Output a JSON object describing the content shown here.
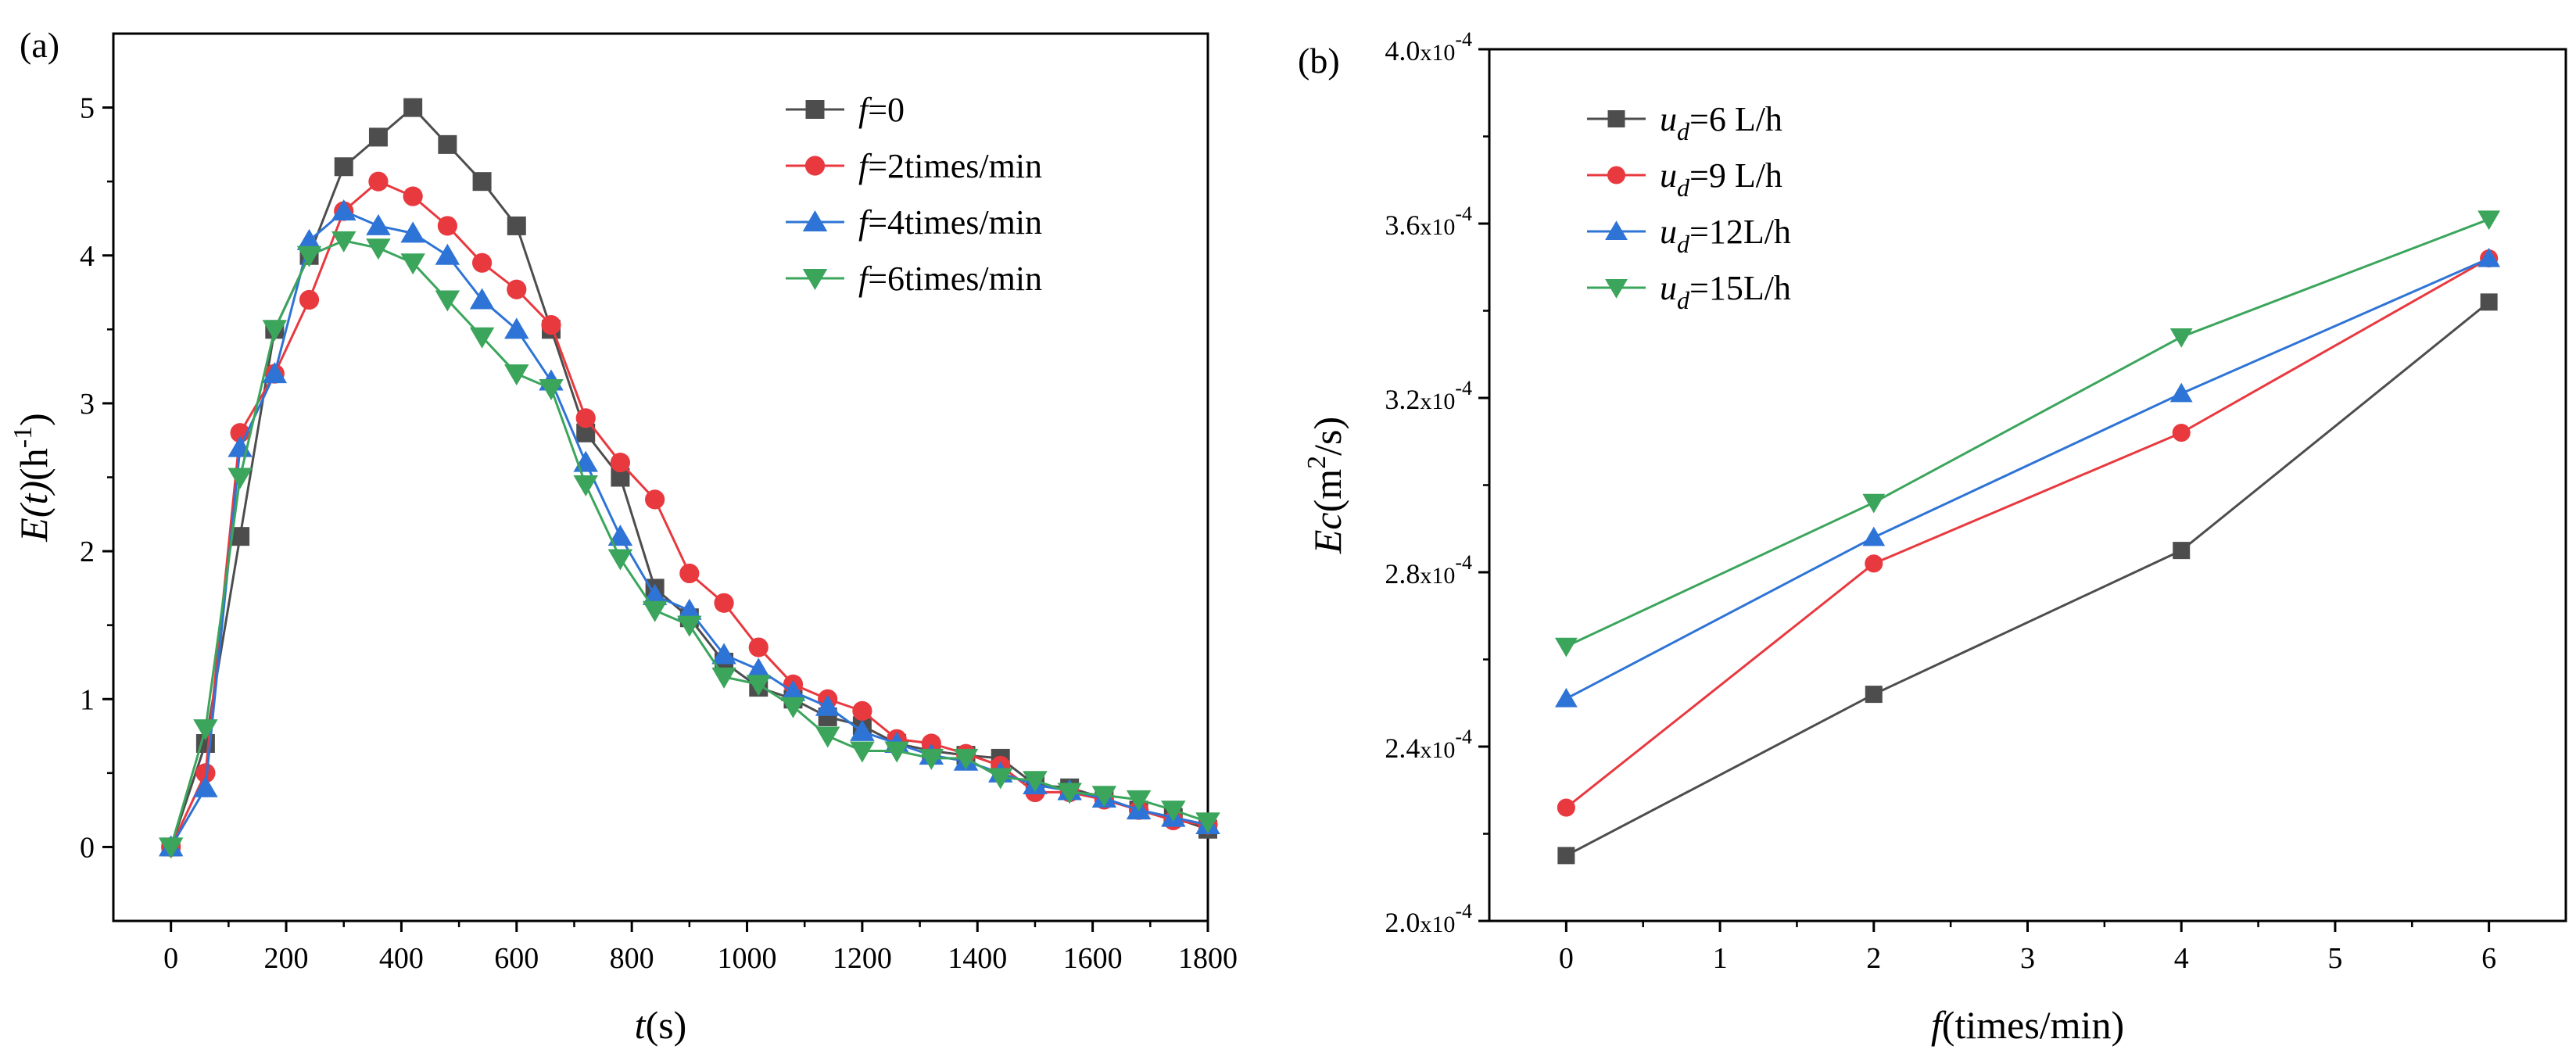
{
  "chart_data": [
    {
      "panel": "(a)",
      "type": "line",
      "title": "",
      "xlabel_italic": "t",
      "xlabel_rest": "(s)",
      "ylabel_italic": "E(t)",
      "ylabel_rest": "(h",
      "ylabel_sup": "-1",
      "ylabel_close": ")",
      "xlim": [
        -100,
        1800
      ],
      "ylim": [
        -0.5,
        5.5
      ],
      "xticks": [
        0,
        200,
        400,
        600,
        800,
        1000,
        1200,
        1400,
        1600,
        1800
      ],
      "yticks": [
        0,
        1,
        2,
        3,
        4,
        5
      ],
      "legend_position": "top-right",
      "series": [
        {
          "name_italic": "f",
          "name_rest": "=0",
          "color": "#4d4d4d",
          "marker": "square",
          "x": [
            0,
            60,
            120,
            180,
            240,
            300,
            360,
            420,
            480,
            540,
            600,
            660,
            720,
            780,
            840,
            900,
            960,
            1020,
            1080,
            1140,
            1200,
            1260,
            1320,
            1380,
            1440,
            1500,
            1560,
            1620,
            1680,
            1740,
            1800
          ],
          "y": [
            0,
            0.7,
            2.1,
            3.5,
            4.0,
            4.6,
            4.8,
            5.0,
            4.75,
            4.5,
            4.2,
            3.5,
            2.8,
            2.5,
            1.75,
            1.55,
            1.25,
            1.08,
            1.0,
            0.88,
            0.82,
            0.7,
            0.65,
            0.62,
            0.6,
            0.42,
            0.4,
            0.33,
            0.25,
            0.2,
            0.12
          ]
        },
        {
          "name_italic": "f",
          "name_rest": "=2times/min",
          "color": "#e8393f",
          "marker": "circle",
          "x": [
            0,
            60,
            120,
            180,
            240,
            300,
            360,
            420,
            480,
            540,
            600,
            660,
            720,
            780,
            840,
            900,
            960,
            1020,
            1080,
            1140,
            1200,
            1260,
            1320,
            1380,
            1440,
            1500,
            1560,
            1620,
            1680,
            1740,
            1800
          ],
          "y": [
            0,
            0.5,
            2.8,
            3.2,
            3.7,
            4.3,
            4.5,
            4.4,
            4.2,
            3.95,
            3.77,
            3.53,
            2.9,
            2.6,
            2.35,
            1.85,
            1.65,
            1.35,
            1.1,
            1.0,
            0.92,
            0.73,
            0.7,
            0.63,
            0.55,
            0.37,
            0.37,
            0.32,
            0.25,
            0.18,
            0.15
          ]
        },
        {
          "name_italic": "f",
          "name_rest": "=4times/min",
          "color": "#2e74d6",
          "marker": "triangle-up",
          "x": [
            0,
            60,
            120,
            180,
            240,
            300,
            360,
            420,
            480,
            540,
            600,
            660,
            720,
            780,
            840,
            900,
            960,
            1020,
            1080,
            1140,
            1200,
            1260,
            1320,
            1380,
            1440,
            1500,
            1560,
            1620,
            1680,
            1740,
            1800
          ],
          "y": [
            0,
            0.4,
            2.7,
            3.2,
            4.1,
            4.3,
            4.2,
            4.15,
            4.0,
            3.7,
            3.5,
            3.15,
            2.6,
            2.1,
            1.7,
            1.6,
            1.3,
            1.2,
            1.05,
            0.95,
            0.78,
            0.7,
            0.62,
            0.58,
            0.5,
            0.42,
            0.38,
            0.33,
            0.25,
            0.2,
            0.15
          ]
        },
        {
          "name_italic": "f",
          "name_rest": "=6times/min",
          "color": "#3ba55c",
          "marker": "triangle-down",
          "x": [
            0,
            60,
            120,
            180,
            240,
            300,
            360,
            420,
            480,
            540,
            600,
            660,
            720,
            780,
            840,
            900,
            960,
            1020,
            1080,
            1140,
            1200,
            1260,
            1320,
            1380,
            1440,
            1500,
            1560,
            1620,
            1680,
            1740,
            1800
          ],
          "y": [
            0,
            0.8,
            2.5,
            3.5,
            4.0,
            4.1,
            4.05,
            3.95,
            3.7,
            3.45,
            3.2,
            3.1,
            2.45,
            1.95,
            1.6,
            1.5,
            1.15,
            1.1,
            0.95,
            0.75,
            0.65,
            0.65,
            0.6,
            0.6,
            0.47,
            0.45,
            0.37,
            0.35,
            0.32,
            0.25,
            0.17
          ]
        }
      ]
    },
    {
      "panel": "(b)",
      "type": "line",
      "title": "",
      "xlabel_italic": "f",
      "xlabel_rest": "(times/min)",
      "ylabel_italic": "Ec",
      "ylabel_rest": "(m",
      "ylabel_sup": "2",
      "ylabel_close": "/s)",
      "xlim": [
        -0.5,
        6.5
      ],
      "ylim": [
        2.0,
        4.0
      ],
      "xticks": [
        0,
        1,
        2,
        3,
        4,
        5,
        6
      ],
      "yticks": [
        {
          "value": 2.0,
          "mant": "2.0",
          "times": "x10",
          "exp": "-4"
        },
        {
          "value": 2.4,
          "mant": "2.4",
          "times": "x10",
          "exp": "-4"
        },
        {
          "value": 2.8,
          "mant": "2.8",
          "times": "x10",
          "exp": "-4"
        },
        {
          "value": 3.2,
          "mant": "3.2",
          "times": "x10",
          "exp": "-4"
        },
        {
          "value": 3.6,
          "mant": "3.6",
          "times": "x10",
          "exp": "-4"
        },
        {
          "value": 4.0,
          "mant": "4.0",
          "times": "x10",
          "exp": "-4"
        }
      ],
      "y_scale_note": "values x10^-4 m^2/s",
      "legend_position": "top-left",
      "series": [
        {
          "name_italic": "u",
          "name_sub": "d",
          "name_rest": "=6 L/h",
          "color": "#4d4d4d",
          "marker": "square",
          "x": [
            0,
            2,
            4,
            6
          ],
          "y": [
            2.15,
            2.52,
            2.85,
            3.42
          ]
        },
        {
          "name_italic": "u",
          "name_sub": "d",
          "name_rest": "=9 L/h",
          "color": "#e8393f",
          "marker": "circle",
          "x": [
            0,
            2,
            4,
            6
          ],
          "y": [
            2.26,
            2.82,
            3.12,
            3.52
          ]
        },
        {
          "name_italic": "u",
          "name_sub": "d",
          "name_rest": "=12L/h",
          "color": "#2e74d6",
          "marker": "triangle-up",
          "x": [
            0,
            2,
            4,
            6
          ],
          "y": [
            2.51,
            2.88,
            3.21,
            3.52
          ]
        },
        {
          "name_italic": "u",
          "name_sub": "d",
          "name_rest": "=15L/h",
          "color": "#3ba55c",
          "marker": "triangle-down",
          "x": [
            0,
            2,
            4,
            6
          ],
          "y": [
            2.63,
            2.96,
            3.34,
            3.61
          ]
        }
      ]
    }
  ]
}
